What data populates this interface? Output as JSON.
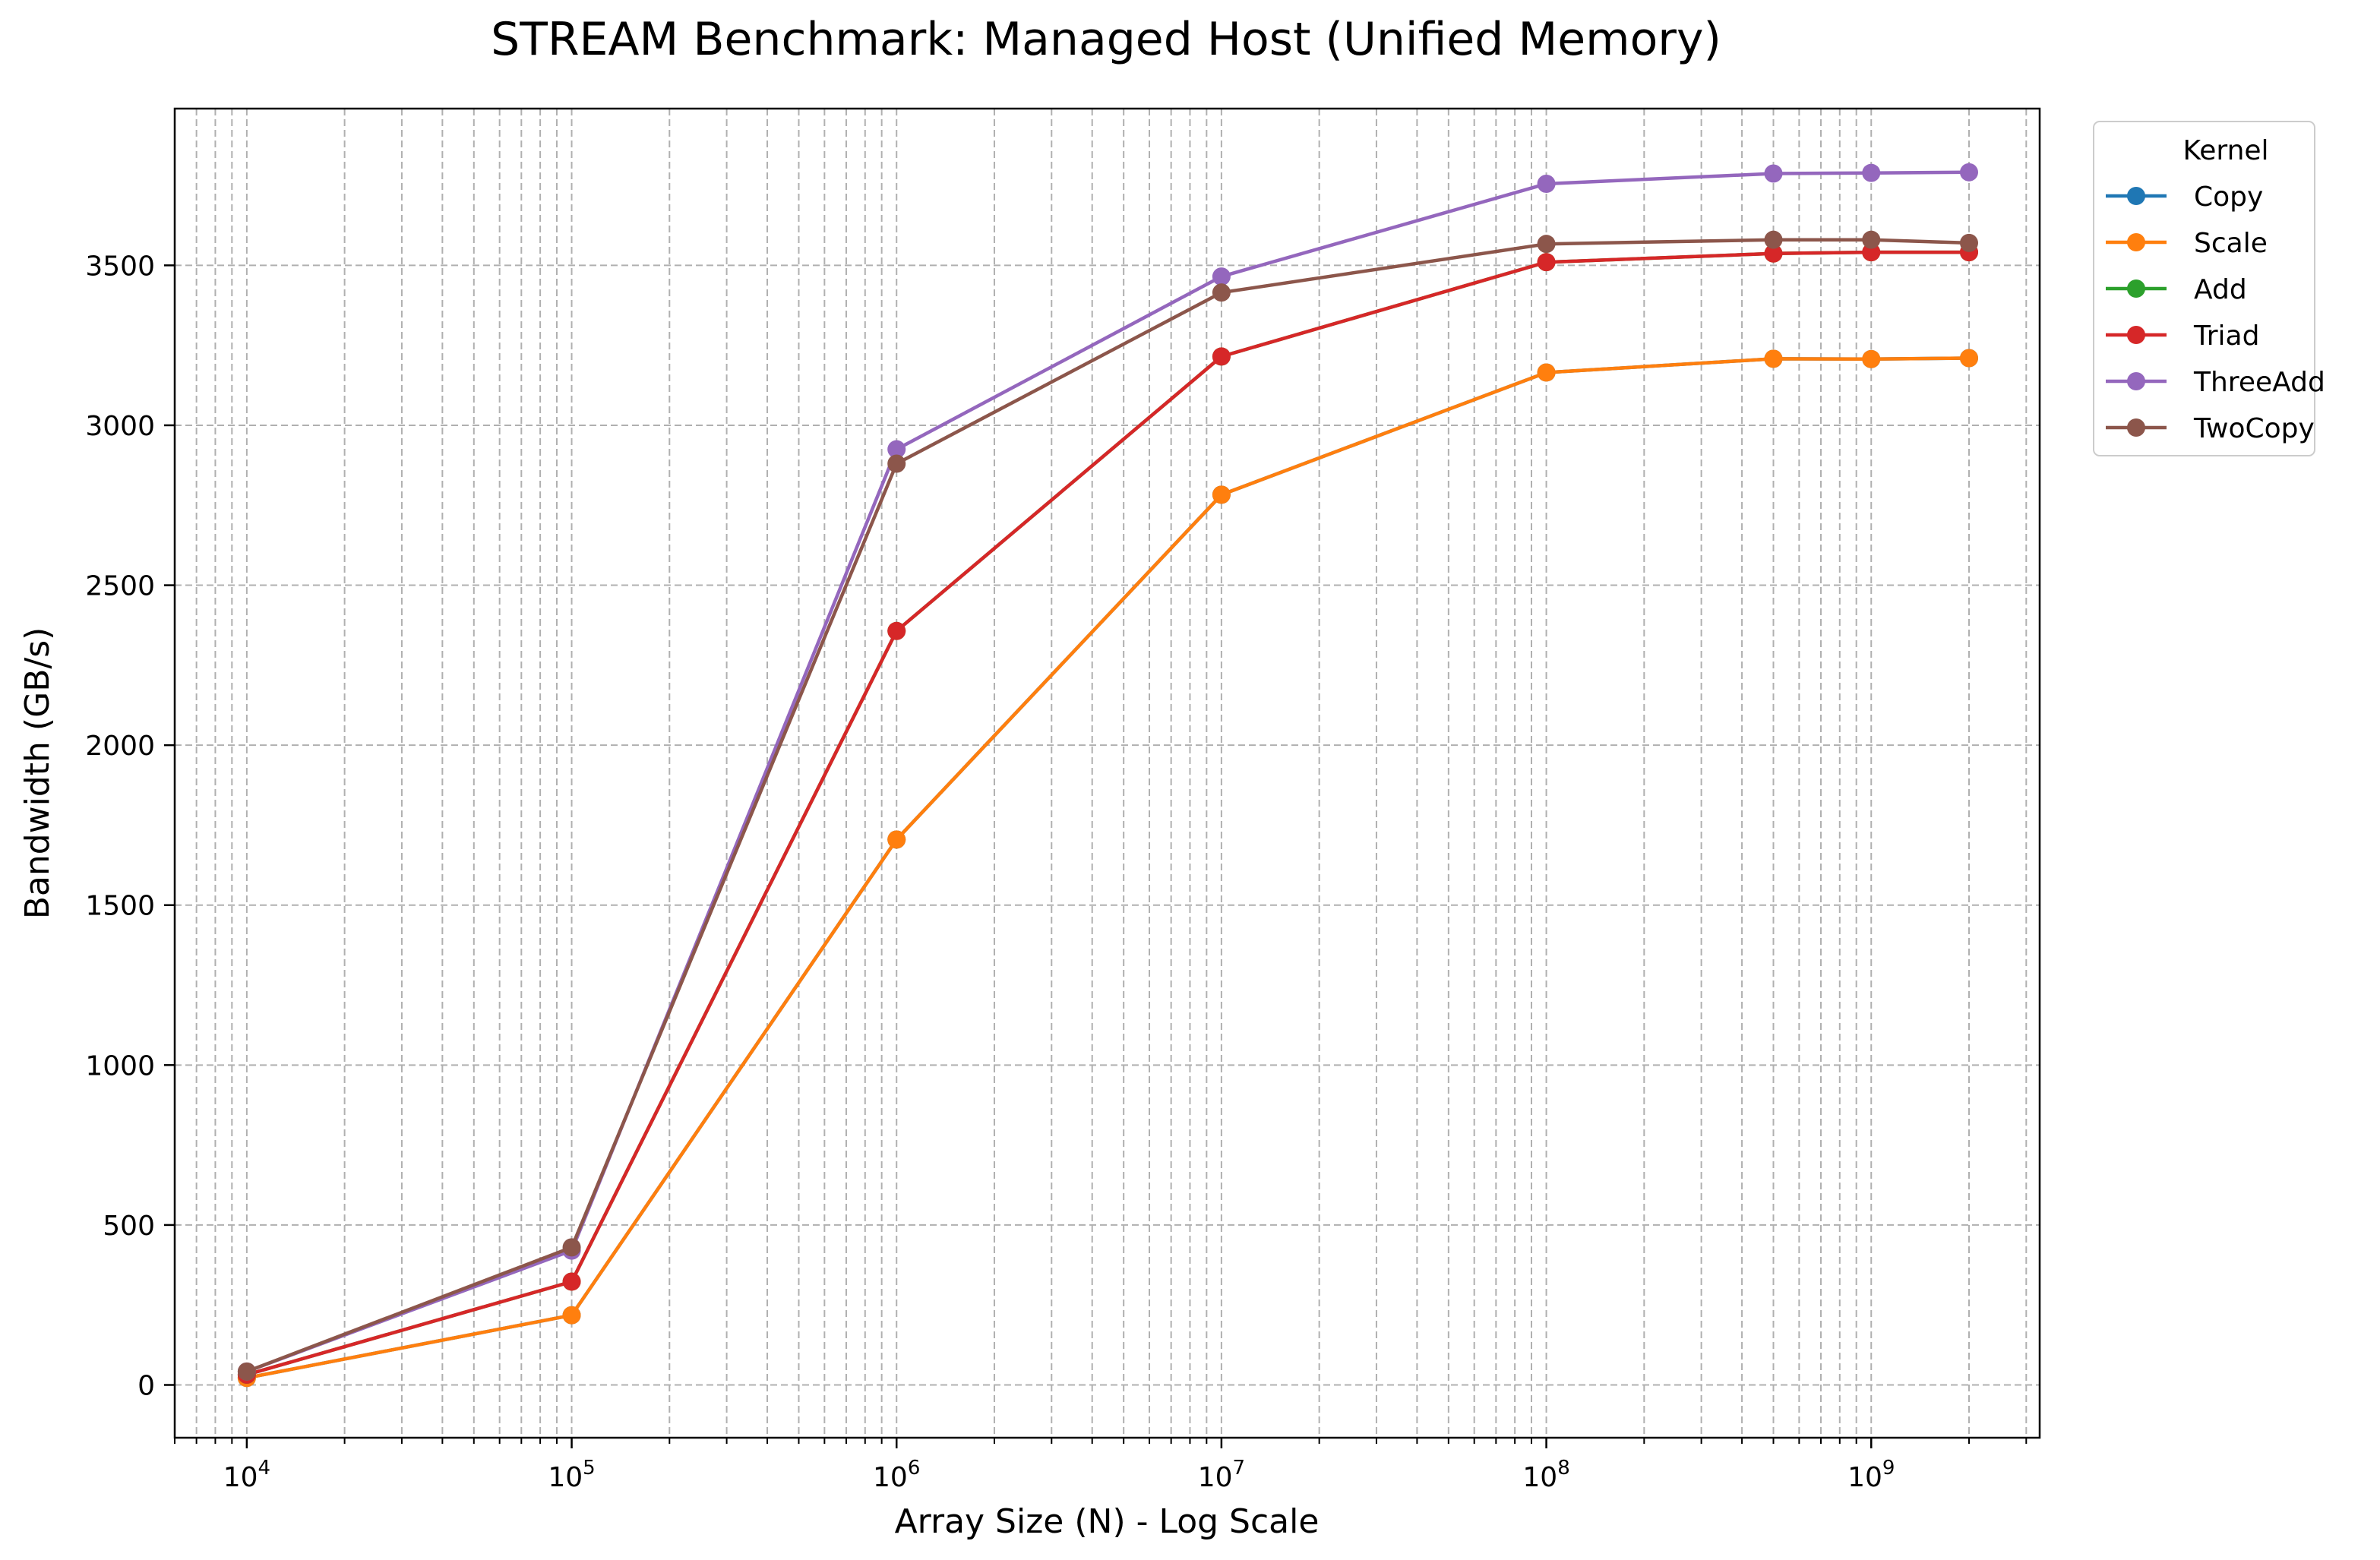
{
  "chart_data": {
    "type": "line",
    "title": "STREAM Benchmark: Managed Host (Unified Memory)",
    "xlabel": "Array Size (N) - Log Scale",
    "ylabel": "Bandwidth (GB/s)",
    "xscale": "log",
    "xlim": [
      6000,
      3300000000
    ],
    "ylim": [
      -165,
      3990
    ],
    "grid": true,
    "grid_style": "dashed",
    "x_ticks": [
      {
        "value": 10000,
        "base": "10",
        "exp": "4"
      },
      {
        "value": 100000,
        "base": "10",
        "exp": "5"
      },
      {
        "value": 1000000,
        "base": "10",
        "exp": "6"
      },
      {
        "value": 10000000,
        "base": "10",
        "exp": "7"
      },
      {
        "value": 100000000,
        "base": "10",
        "exp": "8"
      },
      {
        "value": 1000000000,
        "base": "10",
        "exp": "9"
      }
    ],
    "y_ticks": [
      0,
      500,
      1000,
      1500,
      2000,
      2500,
      3000,
      3500
    ],
    "x": [
      10000,
      100000,
      1000000,
      10000000,
      100000000,
      500000000,
      1000000000,
      2000000000
    ],
    "legend": {
      "title": "Kernel",
      "position": "outside-upper-right"
    },
    "series": [
      {
        "name": "Copy",
        "color": "#1f77b4",
        "values": [
          22,
          218,
          1705,
          2783,
          3165,
          3208,
          3207,
          3210
        ]
      },
      {
        "name": "Scale",
        "color": "#ff7f0e",
        "values": [
          22,
          218,
          1705,
          2783,
          3165,
          3208,
          3207,
          3210
        ]
      },
      {
        "name": "Add",
        "color": "#2ca02c",
        "values": [
          32,
          323,
          2357,
          3215,
          3510,
          3537,
          3541,
          3541
        ]
      },
      {
        "name": "Triad",
        "color": "#d62728",
        "values": [
          32,
          323,
          2357,
          3215,
          3510,
          3537,
          3541,
          3541
        ]
      },
      {
        "name": "ThreeAdd",
        "color": "#9467bd",
        "values": [
          42,
          420,
          2925,
          3465,
          3755,
          3787,
          3789,
          3791
        ]
      },
      {
        "name": "TwoCopy",
        "color": "#8c564b",
        "values": [
          42,
          430,
          2880,
          3415,
          3567,
          3580,
          3580,
          3570
        ]
      }
    ]
  }
}
